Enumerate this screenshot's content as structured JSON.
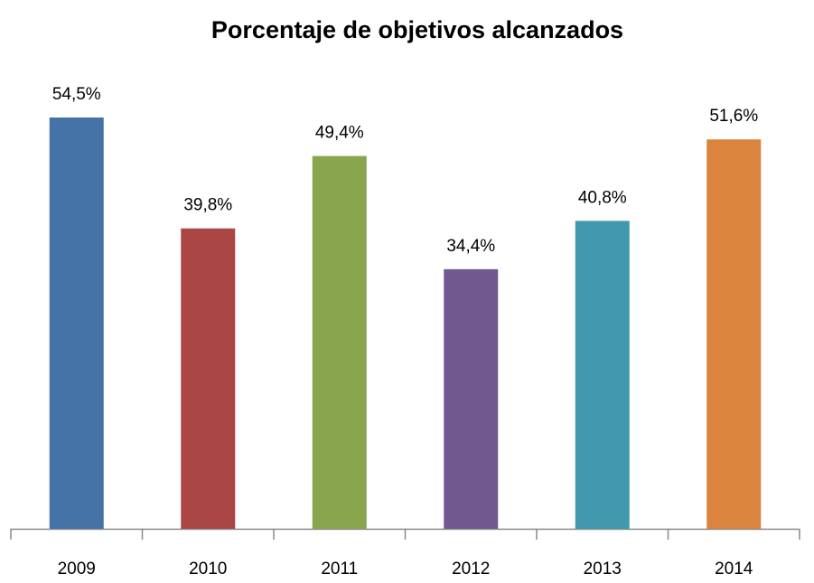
{
  "chart_data": {
    "type": "bar",
    "title": "Porcentaje de objetivos alcanzados",
    "categories": [
      "2009",
      "2010",
      "2011",
      "2012",
      "2013",
      "2014"
    ],
    "values": [
      54.5,
      39.8,
      49.4,
      34.4,
      40.8,
      51.6
    ],
    "value_labels": [
      "54,5%",
      "39,8%",
      "49,4%",
      "34,4%",
      "40,8%",
      "51,6%"
    ],
    "colors": [
      "#4572a7",
      "#aa4643",
      "#89a54e",
      "#71588f",
      "#4198af",
      "#db843d"
    ]
  }
}
